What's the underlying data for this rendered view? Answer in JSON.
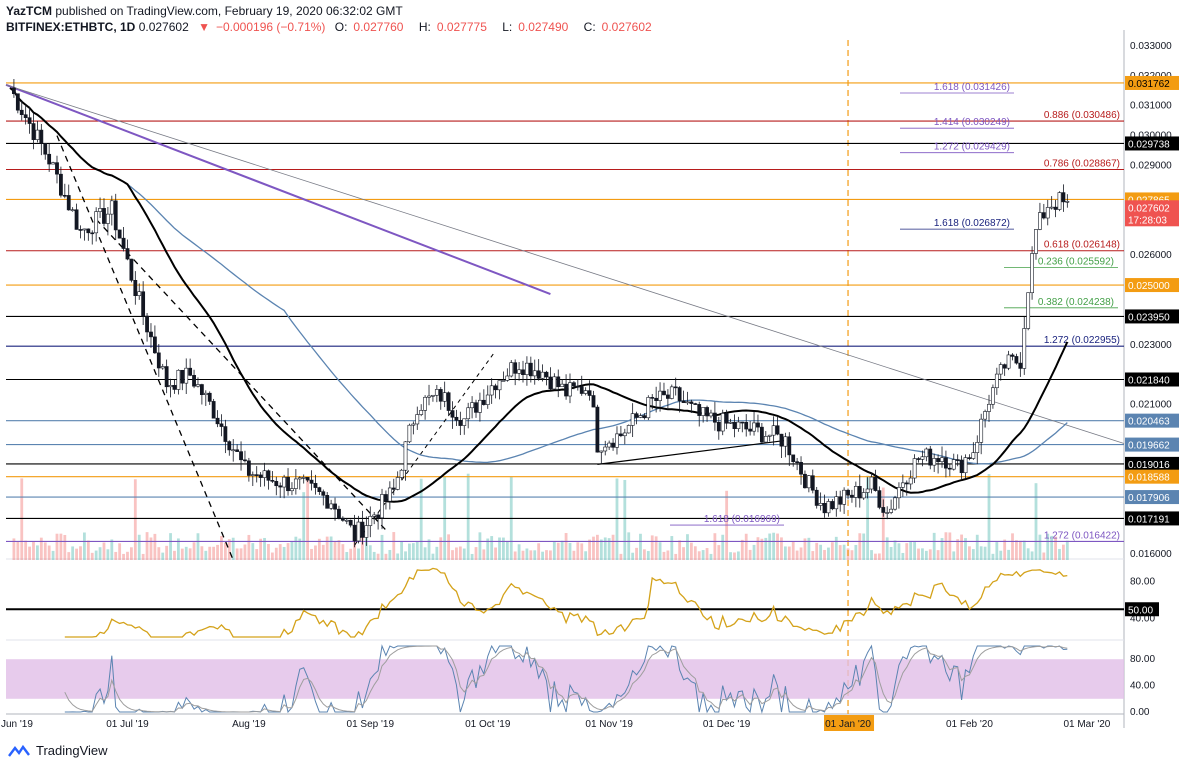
{
  "header": {
    "author": "YazTCM",
    "published_text": "published on TradingView.com, February 19, 2020 06:32:02 GMT",
    "symbol": "BITFINEX:ETHBTC, 1D",
    "last": "0.027602",
    "arrow": "▼",
    "change": "−0.000196 (−0.71%)",
    "open_label": "O:",
    "open": "0.027760",
    "high_label": "H:",
    "high": "0.027775",
    "low_label": "L:",
    "low": "0.027490",
    "close_label": "C:",
    "close": "0.027602"
  },
  "brand": "TradingView",
  "colors": {
    "up": "#26a69a",
    "down": "#ef5350",
    "sma100": "#000000",
    "sma200": "#5b84b1",
    "purple": "#7e57c2",
    "fib_red": "#b71c1c",
    "fib_green": "#43a047",
    "blue": "#1a237e",
    "orange": "#f39c12",
    "rsi": "#d4a21a",
    "stoch_bg": "#e1bee7"
  },
  "chart_data": {
    "type": "candlestick",
    "x_labels": [
      "01 Jun '19",
      "01 Jul '19",
      "Aug '19",
      "01 Sep '19",
      "01 Oct '19",
      "01 Nov '19",
      "01 Dec '19",
      "01 Jan '20",
      "01 Feb '20",
      "01 Mar '20"
    ],
    "x_label_days": [
      0,
      30,
      61,
      92,
      122,
      153,
      183,
      214,
      245,
      275
    ],
    "highlight_x_label": "01 Jan '20",
    "ylim": [
      0.0158,
      0.0332
    ],
    "y_ticks": [
      "0.016000",
      "0.021000",
      "0.023000",
      "0.026000",
      "0.029000",
      "0.030000",
      "0.031000",
      "0.032000",
      "0.033000"
    ],
    "price_keypoints": [
      [
        0,
        0.0316
      ],
      [
        10,
        0.0292
      ],
      [
        18,
        0.0268
      ],
      [
        26,
        0.0275
      ],
      [
        34,
        0.024
      ],
      [
        40,
        0.0217
      ],
      [
        46,
        0.022
      ],
      [
        52,
        0.0208
      ],
      [
        60,
        0.0188
      ],
      [
        66,
        0.0185
      ],
      [
        74,
        0.0183
      ],
      [
        82,
        0.0178
      ],
      [
        88,
        0.0166
      ],
      [
        92,
        0.0172
      ],
      [
        98,
        0.0181
      ],
      [
        104,
        0.021
      ],
      [
        110,
        0.0213
      ],
      [
        116,
        0.0205
      ],
      [
        124,
        0.0218
      ],
      [
        130,
        0.0224
      ],
      [
        136,
        0.0221
      ],
      [
        142,
        0.0214
      ],
      [
        148,
        0.0216
      ],
      [
        150,
        0.0197
      ],
      [
        156,
        0.02
      ],
      [
        164,
        0.0211
      ],
      [
        170,
        0.0213
      ],
      [
        176,
        0.0206
      ],
      [
        184,
        0.0203
      ],
      [
        194,
        0.02
      ],
      [
        198,
        0.0198
      ],
      [
        204,
        0.0183
      ],
      [
        208,
        0.0176
      ],
      [
        214,
        0.0179
      ],
      [
        220,
        0.0183
      ],
      [
        224,
        0.0174
      ],
      [
        228,
        0.0185
      ],
      [
        232,
        0.0192
      ],
      [
        238,
        0.0193
      ],
      [
        242,
        0.0189
      ],
      [
        246,
        0.0195
      ],
      [
        250,
        0.0212
      ],
      [
        254,
        0.0223
      ],
      [
        258,
        0.0225
      ],
      [
        260,
        0.025
      ],
      [
        262,
        0.0268
      ],
      [
        265,
        0.0277
      ],
      [
        268,
        0.0278
      ],
      [
        270,
        0.0276
      ]
    ],
    "h_levels": [
      {
        "value": 0.031762,
        "label": "0.031762",
        "color": "#f39c12",
        "tag_bg": "#f39c12",
        "tag_fg": "#000000"
      },
      {
        "value": 0.030486,
        "label": "0.886 (0.030486)",
        "color": "#b71c1c",
        "tag_bg": "",
        "tag_fg": "#b71c1c"
      },
      {
        "value": 0.029738,
        "label": "0.029738",
        "color": "#000000",
        "tag_bg": "#000000",
        "tag_fg": "#ffffff"
      },
      {
        "value": 0.028867,
        "label": "0.786 (0.028867)",
        "color": "#b71c1c",
        "tag_bg": "",
        "tag_fg": "#b71c1c"
      },
      {
        "value": 0.027865,
        "label": "0.027865",
        "color": "#f39c12",
        "tag_bg": "#f39c12",
        "tag_fg": "#ffffff"
      },
      {
        "value": 0.026148,
        "label": "0.618 (0.026148)",
        "color": "#b71c1c",
        "tag_bg": "",
        "tag_fg": "#b71c1c"
      },
      {
        "value": 0.025,
        "label": "0.025000",
        "color": "#f39c12",
        "tag_bg": "#f39c12",
        "tag_fg": "#ffffff"
      },
      {
        "value": 0.02395,
        "label": "0.023950",
        "color": "#000000",
        "tag_bg": "#000000",
        "tag_fg": "#ffffff"
      },
      {
        "value": 0.022955,
        "label": "1.272 (0.022955)",
        "color": "#1a237e",
        "tag_bg": "",
        "tag_fg": "#1a237e"
      },
      {
        "value": 0.02184,
        "label": "0.021840",
        "color": "#000000",
        "tag_bg": "#000000",
        "tag_fg": "#ffffff"
      },
      {
        "value": 0.020463,
        "label": "0.020463",
        "color": "#5b84b1",
        "tag_bg": "#5b84b1",
        "tag_fg": "#ffffff"
      },
      {
        "value": 0.019662,
        "label": "0.019662",
        "color": "#5b84b1",
        "tag_bg": "#5b84b1",
        "tag_fg": "#ffffff"
      },
      {
        "value": 0.019016,
        "label": "0.019016",
        "color": "#000000",
        "tag_bg": "#000000",
        "tag_fg": "#ffffff"
      },
      {
        "value": 0.018588,
        "label": "0.018588",
        "color": "#f39c12",
        "tag_bg": "#f39c12",
        "tag_fg": "#ffffff"
      },
      {
        "value": 0.017906,
        "label": "0.017906",
        "color": "#5b84b1",
        "tag_bg": "#5b84b1",
        "tag_fg": "#ffffff"
      },
      {
        "value": 0.017191,
        "label": "0.017191",
        "color": "#000000",
        "tag_bg": "#000000",
        "tag_fg": "#ffffff"
      },
      {
        "value": 0.016422,
        "label": "1.272 (0.016422)",
        "color": "#7e57c2",
        "tag_bg": "",
        "tag_fg": "#7e57c2"
      }
    ],
    "fib_ext_labels": [
      {
        "value": 0.031426,
        "label": "1.618 (0.031426)",
        "color": "#7e57c2"
      },
      {
        "value": 0.030249,
        "label": "1.414 (0.030249)",
        "color": "#7e57c2"
      },
      {
        "value": 0.029429,
        "label": "1.272 (0.029429)",
        "color": "#7e57c2"
      },
      {
        "value": 0.026872,
        "label": "1.618 (0.026872)",
        "color": "#1a237e"
      },
      {
        "value": 0.025592,
        "label": "0.236 (0.025592)",
        "color": "#43a047"
      },
      {
        "value": 0.024238,
        "label": "0.382 (0.024238)",
        "color": "#43a047"
      },
      {
        "value": 0.016969,
        "label": "1.618 (0.016969)",
        "color": "#7e57c2"
      }
    ],
    "current_price": {
      "value": 0.027602,
      "label": "0.027602",
      "timer": "17:28:03"
    },
    "rsi": {
      "ylim": [
        20,
        100
      ],
      "ticks": [
        "80.00",
        "40.00"
      ],
      "level": 50,
      "level_label": "50.00"
    },
    "stoch": {
      "ylim": [
        0,
        100
      ],
      "ticks": [
        "80.00",
        "40.00",
        "0.00"
      ],
      "band": [
        20,
        80
      ]
    }
  }
}
